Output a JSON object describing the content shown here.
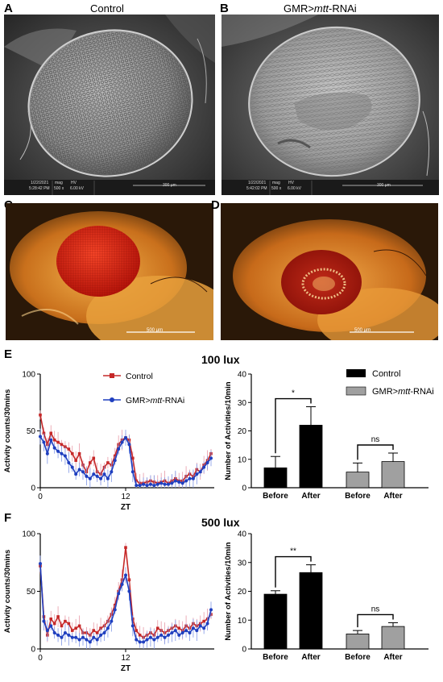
{
  "panels": {
    "A": {
      "letter": "A",
      "title": "Control"
    },
    "B": {
      "letter": "B",
      "title_prefix": "GMR>",
      "title_italic": "mtt",
      "title_suffix": "-RNAi"
    },
    "C": {
      "letter": "C"
    },
    "D": {
      "letter": "D"
    },
    "E": {
      "letter": "E",
      "condition": "100 lux"
    },
    "F": {
      "letter": "F",
      "condition": "500 lux"
    }
  },
  "sem": {
    "A": {
      "date": "1/22/2021",
      "time": "5:28:42 PM",
      "mag_label": "mag",
      "mag": "500 x",
      "hv_label": "HV",
      "hv": "6.00 kV",
      "scale": "300 μm"
    },
    "B": {
      "date": "1/22/2021",
      "time": "5:42:02 PM",
      "mag_label": "mag",
      "mag": "500 x",
      "hv_label": "HV",
      "hv": "6.00 kV",
      "scale": "300 μm"
    }
  },
  "micro": {
    "C": {
      "scale": "500 μm"
    },
    "D": {
      "scale": "500 μm"
    }
  },
  "legends": {
    "control": "Control",
    "rnai_prefix": "GMR>",
    "rnai_italic": "mtt",
    "rnai_suffix": "-RNAi"
  },
  "colors": {
    "control_line": "#c62828",
    "rnai_line": "#1f3fbf",
    "control_bar": "#000000",
    "rnai_bar": "#a0a0a0"
  },
  "chart_data": [
    {
      "id": "E-line",
      "type": "line",
      "xlabel": "ZT",
      "ylabel": "Activity counts/30mins",
      "ylim": [
        0,
        100
      ],
      "xticks": [
        0,
        12
      ],
      "yticks": [
        0,
        50,
        100
      ],
      "x_range": [
        0,
        24
      ],
      "series": [
        {
          "name": "Control",
          "x": [
            0,
            0.5,
            1,
            1.5,
            2,
            2.5,
            3,
            3.5,
            4,
            4.5,
            5,
            5.5,
            6,
            6.5,
            7,
            7.5,
            8,
            8.5,
            9,
            9.5,
            10,
            10.5,
            11,
            11.5,
            12,
            12.5,
            13,
            13.5,
            14,
            14.5,
            15,
            15.5,
            16,
            16.5,
            17,
            17.5,
            18,
            18.5,
            19,
            19.5,
            20,
            20.5,
            21,
            21.5,
            22,
            22.5,
            23,
            23.5,
            24
          ],
          "y": [
            64,
            48,
            38,
            48,
            42,
            40,
            38,
            36,
            34,
            30,
            24,
            30,
            20,
            14,
            22,
            26,
            14,
            12,
            18,
            22,
            20,
            28,
            38,
            42,
            44,
            42,
            26,
            6,
            4,
            4,
            5,
            6,
            5,
            4,
            5,
            6,
            4,
            6,
            8,
            6,
            6,
            10,
            12,
            10,
            16,
            14,
            20,
            24,
            30
          ]
        },
        {
          "name": "GMR>mtt-RNAi",
          "x": [
            0,
            0.5,
            1,
            1.5,
            2,
            2.5,
            3,
            3.5,
            4,
            4.5,
            5,
            5.5,
            6,
            6.5,
            7,
            7.5,
            8,
            8.5,
            9,
            9.5,
            10,
            10.5,
            11,
            11.5,
            12,
            12.5,
            13,
            13.5,
            14,
            14.5,
            15,
            15.5,
            16,
            16.5,
            17,
            17.5,
            18,
            18.5,
            19,
            19.5,
            20,
            20.5,
            21,
            21.5,
            22,
            22.5,
            23,
            23.5,
            24
          ],
          "y": [
            45,
            40,
            30,
            42,
            35,
            32,
            30,
            28,
            22,
            18,
            12,
            16,
            14,
            10,
            8,
            12,
            10,
            8,
            12,
            8,
            14,
            24,
            34,
            40,
            44,
            38,
            14,
            2,
            2,
            3,
            2,
            3,
            2,
            3,
            4,
            3,
            3,
            4,
            6,
            5,
            4,
            6,
            8,
            8,
            12,
            14,
            18,
            22,
            26
          ]
        }
      ]
    },
    {
      "id": "E-bar",
      "type": "bar",
      "ylabel": "Number of Activities/10min",
      "ylim": [
        0,
        40
      ],
      "yticks": [
        0,
        10,
        20,
        30,
        40
      ],
      "categories": [
        "Before",
        "After",
        "Before",
        "After"
      ],
      "groups": [
        {
          "name": "Control",
          "values": [
            7,
            22
          ],
          "errors": [
            4,
            6.5
          ],
          "significance": "*"
        },
        {
          "name": "GMR>mtt-RNAi",
          "values": [
            5.5,
            9.2
          ],
          "errors": [
            3.2,
            3
          ],
          "significance": "ns"
        }
      ]
    },
    {
      "id": "F-line",
      "type": "line",
      "xlabel": "ZT",
      "ylabel": "Activity counts/30mins",
      "ylim": [
        0,
        100
      ],
      "xticks": [
        0,
        12
      ],
      "yticks": [
        0,
        50,
        100
      ],
      "x_range": [
        0,
        24
      ],
      "series": [
        {
          "name": "Control",
          "x": [
            0,
            0.5,
            1,
            1.5,
            2,
            2.5,
            3,
            3.5,
            4,
            4.5,
            5,
            5.5,
            6,
            6.5,
            7,
            7.5,
            8,
            8.5,
            9,
            9.5,
            10,
            10.5,
            11,
            11.5,
            12,
            12.5,
            13,
            13.5,
            14,
            14.5,
            15,
            15.5,
            16,
            16.5,
            17,
            17.5,
            18,
            18.5,
            19,
            19.5,
            20,
            20.5,
            21,
            21.5,
            22,
            22.5,
            23,
            23.5,
            24
          ],
          "y": [
            72,
            28,
            12,
            26,
            22,
            28,
            20,
            24,
            22,
            16,
            18,
            20,
            14,
            14,
            12,
            16,
            14,
            18,
            20,
            24,
            30,
            38,
            50,
            60,
            88,
            60,
            26,
            16,
            12,
            10,
            12,
            14,
            12,
            18,
            16,
            14,
            16,
            18,
            20,
            18,
            16,
            20,
            18,
            22,
            20,
            22,
            24,
            26,
            30
          ]
        },
        {
          "name": "GMR>mtt-RNAi",
          "x": [
            0,
            0.5,
            1,
            1.5,
            2,
            2.5,
            3,
            3.5,
            4,
            4.5,
            5,
            5.5,
            6,
            6.5,
            7,
            7.5,
            8,
            8.5,
            9,
            9.5,
            10,
            10.5,
            11,
            11.5,
            12,
            12.5,
            13,
            13.5,
            14,
            14.5,
            15,
            15.5,
            16,
            16.5,
            17,
            17.5,
            18,
            18.5,
            19,
            19.5,
            20,
            20.5,
            21,
            21.5,
            22,
            22.5,
            23,
            23.5,
            24
          ],
          "y": [
            74,
            24,
            16,
            20,
            14,
            12,
            10,
            14,
            12,
            10,
            10,
            8,
            10,
            8,
            6,
            10,
            8,
            12,
            14,
            18,
            24,
            34,
            48,
            56,
            64,
            50,
            20,
            8,
            6,
            6,
            8,
            10,
            8,
            10,
            12,
            10,
            12,
            14,
            16,
            12,
            14,
            16,
            14,
            18,
            16,
            20,
            18,
            22,
            34
          ]
        }
      ]
    },
    {
      "id": "F-bar",
      "type": "bar",
      "ylabel": "Number of Activities/10min",
      "ylim": [
        0,
        40
      ],
      "yticks": [
        0,
        10,
        20,
        30,
        40
      ],
      "categories": [
        "Before",
        "After",
        "Before",
        "After"
      ],
      "groups": [
        {
          "name": "Control",
          "values": [
            19,
            26.5
          ],
          "errors": [
            1.2,
            2.7
          ],
          "significance": "**"
        },
        {
          "name": "GMR>mtt-RNAi",
          "values": [
            5.2,
            7.8
          ],
          "errors": [
            1.2,
            1.3
          ],
          "significance": "ns"
        }
      ]
    }
  ]
}
